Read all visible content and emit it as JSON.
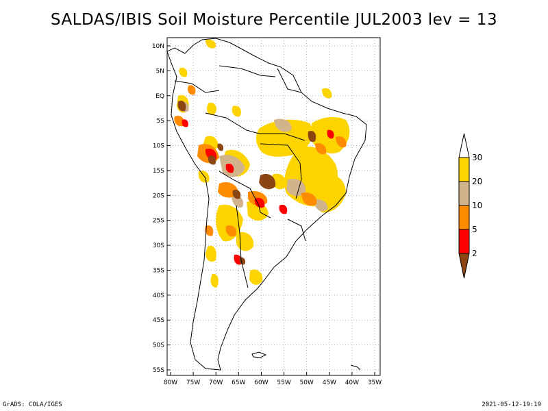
{
  "title": "SALDAS/IBIS Soil Moisture Percentile JUL2003 lev = 13",
  "footer": {
    "left": "GrADS: COLA/IGES",
    "right": "2021-05-12-19:19"
  },
  "map": {
    "lon_range": [
      -80,
      -31
    ],
    "lat_range": [
      -56,
      12
    ],
    "lat_ticks": [
      {
        "value": 10,
        "label": "10N"
      },
      {
        "value": 5,
        "label": "5N"
      },
      {
        "value": 0,
        "label": "EQ"
      },
      {
        "value": -5,
        "label": "5S"
      },
      {
        "value": -10,
        "label": "10S"
      },
      {
        "value": -15,
        "label": "15S"
      },
      {
        "value": -20,
        "label": "20S"
      },
      {
        "value": -25,
        "label": "25S"
      },
      {
        "value": -30,
        "label": "30S"
      },
      {
        "value": -35,
        "label": "35S"
      },
      {
        "value": -40,
        "label": "40S"
      },
      {
        "value": -45,
        "label": "45S"
      },
      {
        "value": -50,
        "label": "50S"
      },
      {
        "value": -55,
        "label": "55S"
      }
    ],
    "lon_ticks": [
      {
        "value": -80,
        "label": "80W"
      },
      {
        "value": -75,
        "label": "75W"
      },
      {
        "value": -70,
        "label": "70W"
      },
      {
        "value": -65,
        "label": "65W"
      },
      {
        "value": -60,
        "label": "60W"
      },
      {
        "value": -55,
        "label": "55W"
      },
      {
        "value": -50,
        "label": "50W"
      },
      {
        "value": -45,
        "label": "45W"
      },
      {
        "value": -40,
        "label": "40W"
      },
      {
        "value": -35,
        "label": "35W"
      }
    ],
    "grid": true,
    "grid_style": "dotted"
  },
  "legend": {
    "placement": "right",
    "bins": [
      {
        "range": ">30",
        "color": "#ffffff"
      },
      {
        "range": "20-30",
        "color": "#fdd400"
      },
      {
        "range": "10-20",
        "color": "#d2b48c"
      },
      {
        "range": "5-10",
        "color": "#ff8c00"
      },
      {
        "range": "2-5",
        "color": "#ff0000"
      },
      {
        "range": "<2",
        "color": "#8b4513"
      }
    ],
    "labels": [
      "30",
      "20",
      "10",
      "5",
      "2"
    ]
  },
  "colors": {
    "yellow": "#fdd400",
    "tan": "#d2b48c",
    "orange": "#ff8c00",
    "red": "#ff0000",
    "brown": "#8b4513"
  }
}
